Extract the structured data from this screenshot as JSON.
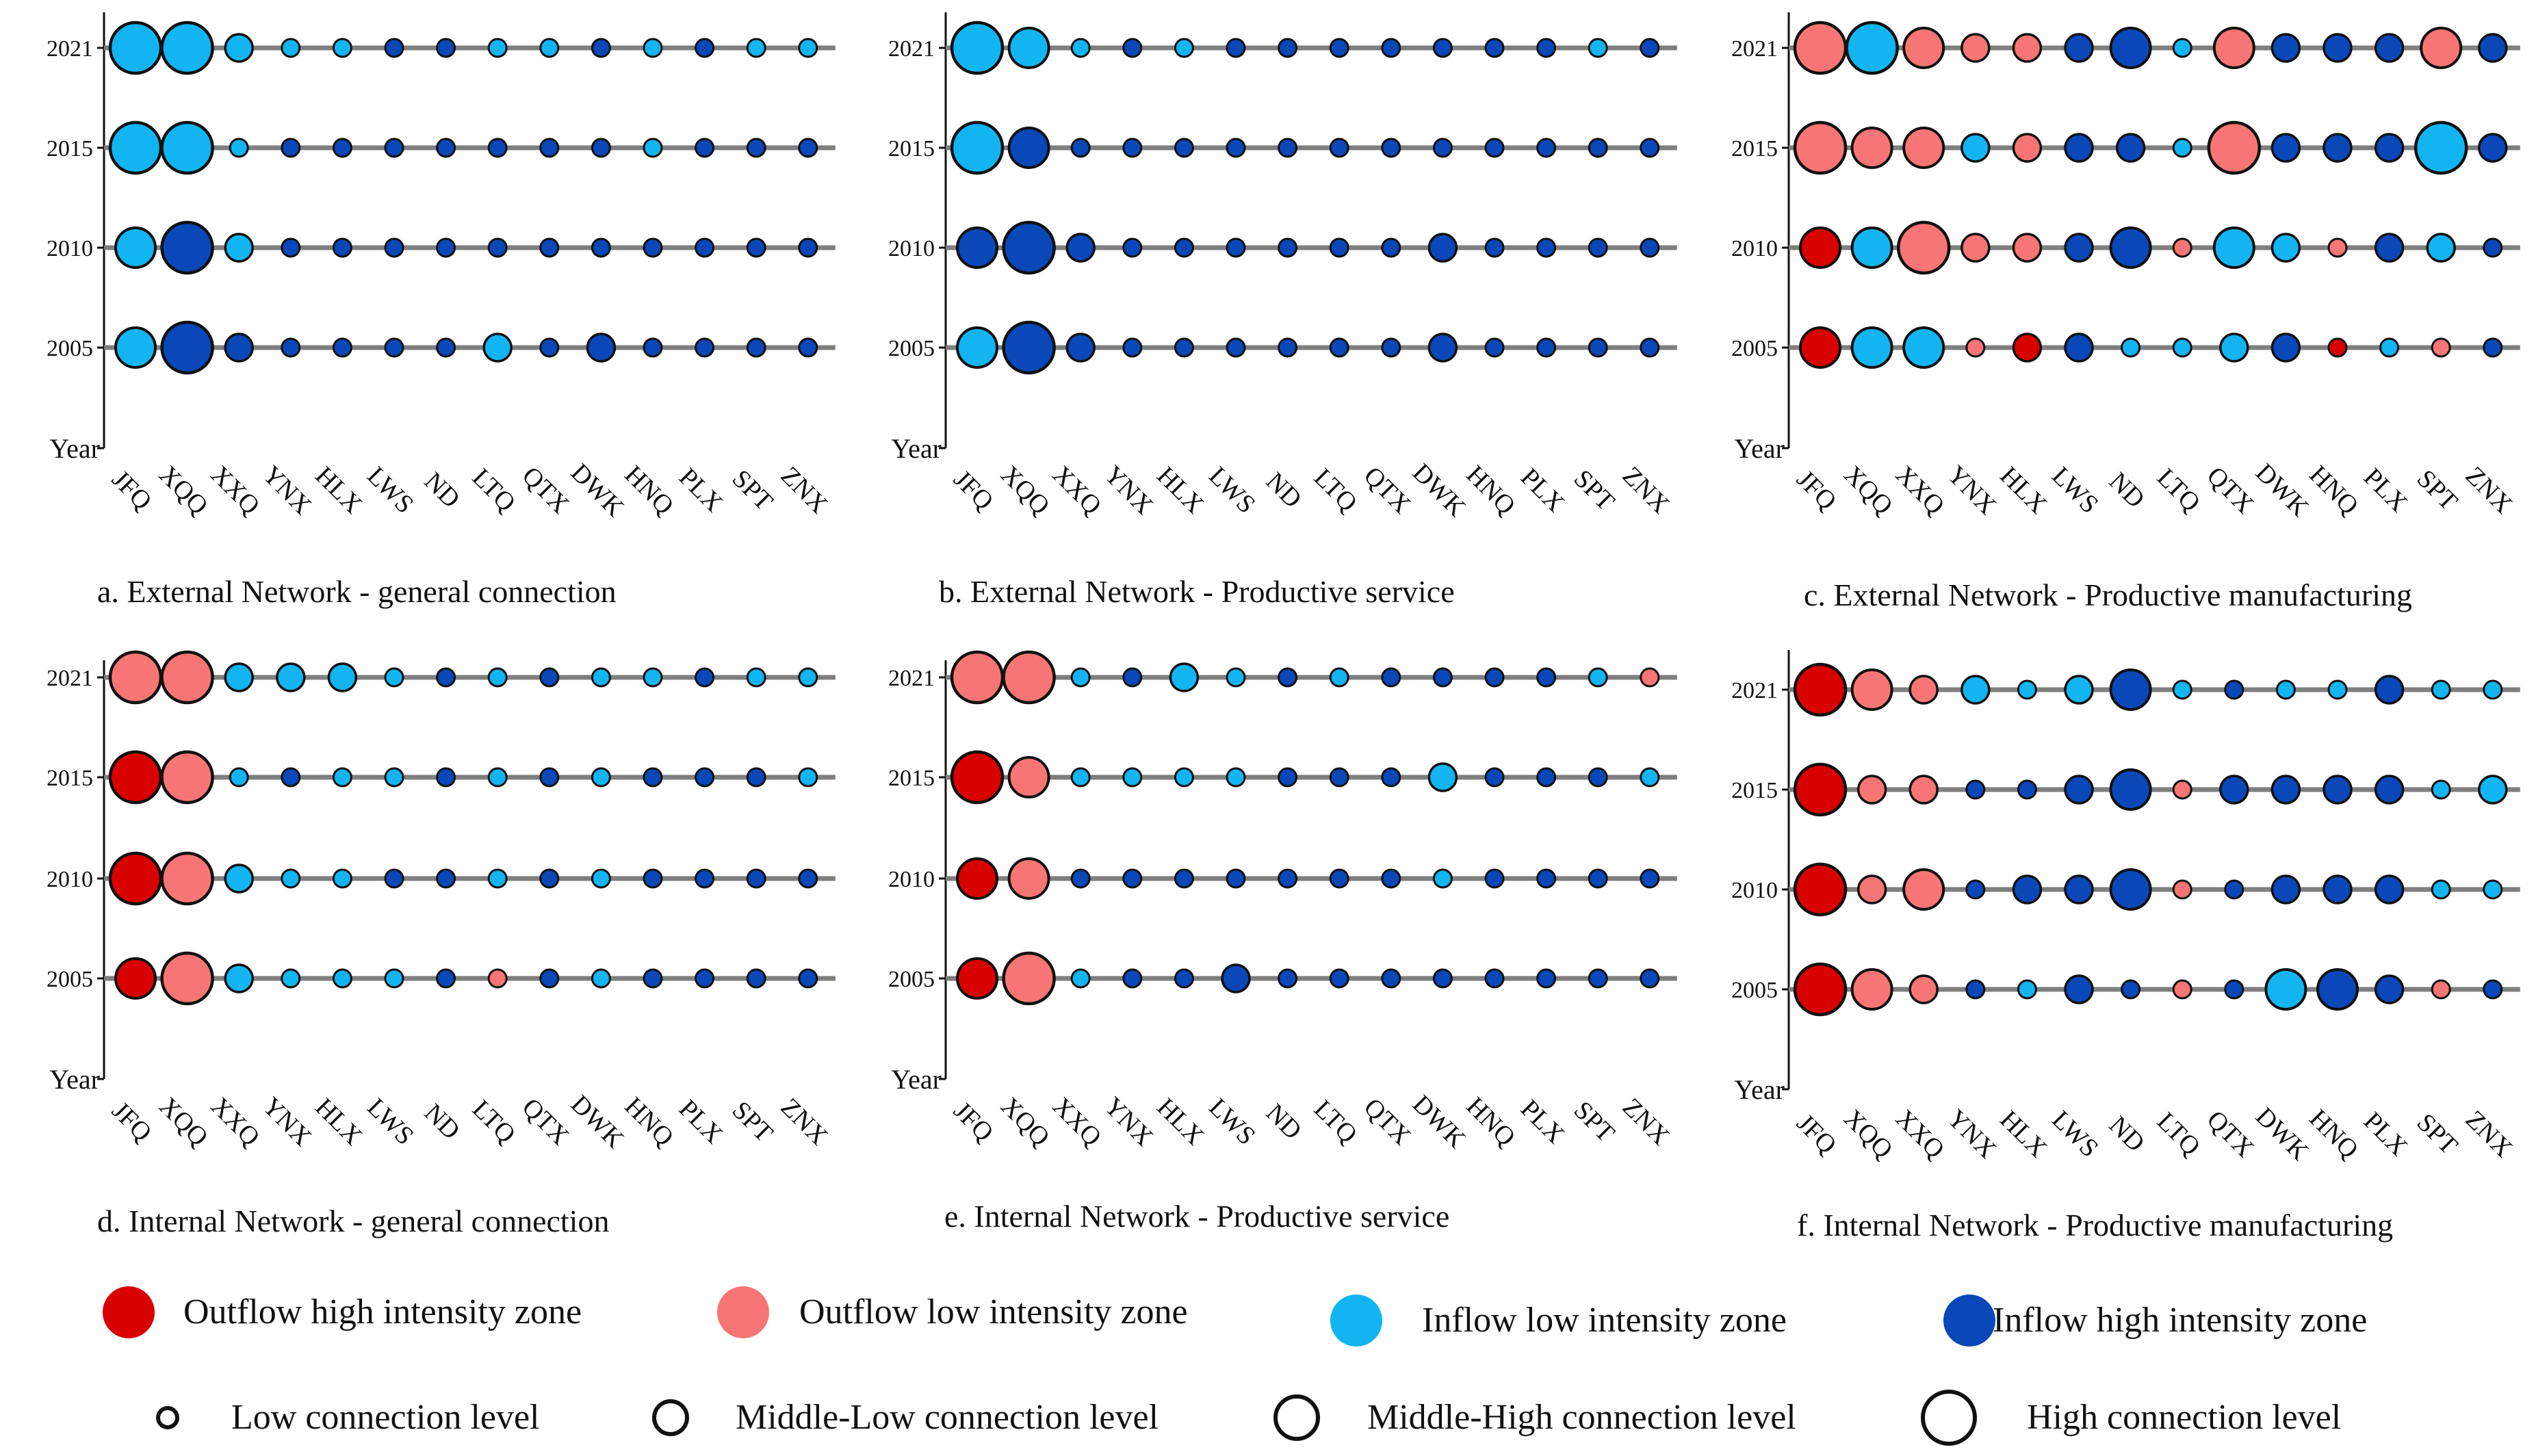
{
  "colors": {
    "outflow_high": "#d90000",
    "outflow_low": "#f87575",
    "inflow_low": "#12b5f2",
    "inflow_high": "#0a47b8",
    "line": "#7f7f7f",
    "marker_edge": "#111111"
  },
  "size_scale": {
    "level_1": 1,
    "level_2": 2,
    "level_3": 3,
    "level_4": 4
  },
  "chart_data": [
    {
      "type": "scatter",
      "title": "a.  External Network - general connection",
      "ylabel": "Year",
      "years": [
        "2005",
        "2010",
        "2015",
        "2021"
      ],
      "categories": [
        "JFQ",
        "XQQ",
        "XXQ",
        "YNX",
        "HLX",
        "LWS",
        "ND",
        "LTQ",
        "QTX",
        "DWK",
        "HNQ",
        "PLX",
        "SPT",
        "ZNX"
      ],
      "zones": [
        [
          "inflow_low",
          "inflow_high",
          "inflow_high",
          "inflow_high",
          "inflow_high",
          "inflow_high",
          "inflow_high",
          "inflow_low",
          "inflow_high",
          "inflow_high",
          "inflow_high",
          "inflow_high",
          "inflow_high",
          "inflow_high"
        ],
        [
          "inflow_low",
          "inflow_high",
          "inflow_low",
          "inflow_high",
          "inflow_high",
          "inflow_high",
          "inflow_high",
          "inflow_high",
          "inflow_high",
          "inflow_high",
          "inflow_high",
          "inflow_high",
          "inflow_high",
          "inflow_high"
        ],
        [
          "inflow_low",
          "inflow_low",
          "inflow_low",
          "inflow_high",
          "inflow_high",
          "inflow_high",
          "inflow_high",
          "inflow_high",
          "inflow_high",
          "inflow_high",
          "inflow_low",
          "inflow_high",
          "inflow_high",
          "inflow_high"
        ],
        [
          "inflow_low",
          "inflow_low",
          "inflow_low",
          "inflow_low",
          "inflow_low",
          "inflow_high",
          "inflow_high",
          "inflow_low",
          "inflow_low",
          "inflow_high",
          "inflow_low",
          "inflow_high",
          "inflow_low",
          "inflow_low"
        ]
      ],
      "levels": [
        [
          3,
          4,
          2,
          1,
          1,
          1,
          1,
          2,
          1,
          2,
          1,
          1,
          1,
          1
        ],
        [
          3,
          4,
          2,
          1,
          1,
          1,
          1,
          1,
          1,
          1,
          1,
          1,
          1,
          1
        ],
        [
          4,
          4,
          1,
          1,
          1,
          1,
          1,
          1,
          1,
          1,
          1,
          1,
          1,
          1
        ],
        [
          4,
          4,
          2,
          1,
          1,
          1,
          1,
          1,
          1,
          1,
          1,
          1,
          1,
          1
        ]
      ]
    },
    {
      "type": "scatter",
      "title": "b. External Network - Productive service",
      "ylabel": "Year",
      "years": [
        "2005",
        "2010",
        "2015",
        "2021"
      ],
      "categories": [
        "JFQ",
        "XQQ",
        "XXQ",
        "YNX",
        "HLX",
        "LWS",
        "ND",
        "LTQ",
        "QTX",
        "DWK",
        "HNQ",
        "PLX",
        "SPT",
        "ZNX"
      ],
      "zones": [
        [
          "inflow_low",
          "inflow_high",
          "inflow_high",
          "inflow_high",
          "inflow_high",
          "inflow_high",
          "inflow_high",
          "inflow_high",
          "inflow_high",
          "inflow_high",
          "inflow_high",
          "inflow_high",
          "inflow_high",
          "inflow_high"
        ],
        [
          "inflow_high",
          "inflow_high",
          "inflow_high",
          "inflow_high",
          "inflow_high",
          "inflow_high",
          "inflow_high",
          "inflow_high",
          "inflow_high",
          "inflow_high",
          "inflow_high",
          "inflow_high",
          "inflow_high",
          "inflow_high"
        ],
        [
          "inflow_low",
          "inflow_high",
          "inflow_high",
          "inflow_high",
          "inflow_high",
          "inflow_high",
          "inflow_high",
          "inflow_high",
          "inflow_high",
          "inflow_high",
          "inflow_high",
          "inflow_high",
          "inflow_high",
          "inflow_high"
        ],
        [
          "inflow_low",
          "inflow_low",
          "inflow_low",
          "inflow_high",
          "inflow_low",
          "inflow_high",
          "inflow_high",
          "inflow_high",
          "inflow_high",
          "inflow_high",
          "inflow_high",
          "inflow_high",
          "inflow_low",
          "inflow_high"
        ]
      ],
      "levels": [
        [
          3,
          4,
          2,
          1,
          1,
          1,
          1,
          1,
          1,
          2,
          1,
          1,
          1,
          1
        ],
        [
          3,
          4,
          2,
          1,
          1,
          1,
          1,
          1,
          1,
          2,
          1,
          1,
          1,
          1
        ],
        [
          4,
          3,
          1,
          1,
          1,
          1,
          1,
          1,
          1,
          1,
          1,
          1,
          1,
          1
        ],
        [
          4,
          3,
          1,
          1,
          1,
          1,
          1,
          1,
          1,
          1,
          1,
          1,
          1,
          1
        ]
      ]
    },
    {
      "type": "scatter",
      "title": "c. External Network - Productive manufacturing",
      "ylabel": "Year",
      "years": [
        "2005",
        "2010",
        "2015",
        "2021"
      ],
      "categories": [
        "JFQ",
        "XQQ",
        "XXQ",
        "YNX",
        "HLX",
        "LWS",
        "ND",
        "LTQ",
        "QTX",
        "DWK",
        "HNQ",
        "PLX",
        "SPT",
        "ZNX"
      ],
      "zones": [
        [
          "outflow_high",
          "inflow_low",
          "inflow_low",
          "outflow_low",
          "outflow_high",
          "inflow_high",
          "inflow_low",
          "inflow_low",
          "inflow_low",
          "inflow_high",
          "outflow_high",
          "inflow_low",
          "outflow_low",
          "inflow_high"
        ],
        [
          "outflow_high",
          "inflow_low",
          "outflow_low",
          "outflow_low",
          "outflow_low",
          "inflow_high",
          "inflow_high",
          "outflow_low",
          "inflow_low",
          "inflow_low",
          "outflow_low",
          "inflow_high",
          "inflow_low",
          "inflow_high"
        ],
        [
          "outflow_low",
          "outflow_low",
          "outflow_low",
          "inflow_low",
          "outflow_low",
          "inflow_high",
          "inflow_high",
          "inflow_low",
          "outflow_low",
          "inflow_high",
          "inflow_high",
          "inflow_high",
          "inflow_low",
          "inflow_high"
        ],
        [
          "outflow_low",
          "inflow_low",
          "outflow_low",
          "outflow_low",
          "outflow_low",
          "inflow_high",
          "inflow_high",
          "inflow_low",
          "outflow_low",
          "inflow_high",
          "inflow_high",
          "inflow_high",
          "outflow_low",
          "inflow_high"
        ]
      ],
      "levels": [
        [
          3,
          3,
          3,
          1,
          2,
          2,
          1,
          1,
          2,
          2,
          1,
          1,
          1,
          1
        ],
        [
          3,
          3,
          4,
          2,
          2,
          2,
          3,
          1,
          3,
          2,
          1,
          2,
          2,
          1
        ],
        [
          4,
          3,
          3,
          2,
          2,
          2,
          2,
          1,
          4,
          2,
          2,
          2,
          4,
          2
        ],
        [
          4,
          4,
          3,
          2,
          2,
          2,
          3,
          1,
          3,
          2,
          2,
          2,
          3,
          2
        ]
      ]
    },
    {
      "type": "scatter",
      "title": "d. Internal Network - general connection",
      "ylabel": "Year",
      "years": [
        "2005",
        "2010",
        "2015",
        "2021"
      ],
      "categories": [
        "JFQ",
        "XQQ",
        "XXQ",
        "YNX",
        "HLX",
        "LWS",
        "ND",
        "LTQ",
        "QTX",
        "DWK",
        "HNQ",
        "PLX",
        "SPT",
        "ZNX"
      ],
      "zones": [
        [
          "outflow_high",
          "outflow_low",
          "inflow_low",
          "inflow_low",
          "inflow_low",
          "inflow_low",
          "inflow_high",
          "outflow_low",
          "inflow_high",
          "inflow_low",
          "inflow_high",
          "inflow_high",
          "inflow_high",
          "inflow_high"
        ],
        [
          "outflow_high",
          "outflow_low",
          "inflow_low",
          "inflow_low",
          "inflow_low",
          "inflow_high",
          "inflow_high",
          "inflow_low",
          "inflow_high",
          "inflow_low",
          "inflow_high",
          "inflow_high",
          "inflow_high",
          "inflow_high"
        ],
        [
          "outflow_high",
          "outflow_low",
          "inflow_low",
          "inflow_high",
          "inflow_low",
          "inflow_low",
          "inflow_high",
          "inflow_low",
          "inflow_high",
          "inflow_low",
          "inflow_high",
          "inflow_high",
          "inflow_high",
          "inflow_low"
        ],
        [
          "outflow_low",
          "outflow_low",
          "inflow_low",
          "inflow_low",
          "inflow_low",
          "inflow_low",
          "inflow_high",
          "inflow_low",
          "inflow_high",
          "inflow_low",
          "inflow_low",
          "inflow_high",
          "inflow_low",
          "inflow_low"
        ]
      ],
      "levels": [
        [
          3,
          4,
          2,
          1,
          1,
          1,
          1,
          1,
          1,
          1,
          1,
          1,
          1,
          1
        ],
        [
          4,
          4,
          2,
          1,
          1,
          1,
          1,
          1,
          1,
          1,
          1,
          1,
          1,
          1
        ],
        [
          4,
          4,
          1,
          1,
          1,
          1,
          1,
          1,
          1,
          1,
          1,
          1,
          1,
          1
        ],
        [
          4,
          4,
          2,
          2,
          2,
          1,
          1,
          1,
          1,
          1,
          1,
          1,
          1,
          1
        ]
      ]
    },
    {
      "type": "scatter",
      "title": "e. Internal Network - Productive service",
      "ylabel": "Year",
      "years": [
        "2005",
        "2010",
        "2015",
        "2021"
      ],
      "categories": [
        "JFQ",
        "XQQ",
        "XXQ",
        "YNX",
        "HLX",
        "LWS",
        "ND",
        "LTQ",
        "QTX",
        "DWK",
        "HNQ",
        "PLX",
        "SPT",
        "ZNX"
      ],
      "zones": [
        [
          "outflow_high",
          "outflow_low",
          "inflow_low",
          "inflow_high",
          "inflow_high",
          "inflow_high",
          "inflow_high",
          "inflow_high",
          "inflow_high",
          "inflow_high",
          "inflow_high",
          "inflow_high",
          "inflow_high",
          "inflow_high"
        ],
        [
          "outflow_high",
          "outflow_low",
          "inflow_high",
          "inflow_high",
          "inflow_high",
          "inflow_high",
          "inflow_high",
          "inflow_high",
          "inflow_high",
          "inflow_low",
          "inflow_high",
          "inflow_high",
          "inflow_high",
          "inflow_high"
        ],
        [
          "outflow_high",
          "outflow_low",
          "inflow_low",
          "inflow_low",
          "inflow_low",
          "inflow_low",
          "inflow_high",
          "inflow_high",
          "inflow_high",
          "inflow_low",
          "inflow_high",
          "inflow_high",
          "inflow_high",
          "inflow_low"
        ],
        [
          "outflow_low",
          "outflow_low",
          "inflow_low",
          "inflow_high",
          "inflow_low",
          "inflow_low",
          "inflow_high",
          "inflow_low",
          "inflow_high",
          "inflow_high",
          "inflow_high",
          "inflow_high",
          "inflow_low",
          "outflow_low"
        ]
      ],
      "levels": [
        [
          3,
          4,
          1,
          1,
          1,
          2,
          1,
          1,
          1,
          1,
          1,
          1,
          1,
          1
        ],
        [
          3,
          3,
          1,
          1,
          1,
          1,
          1,
          1,
          1,
          1,
          1,
          1,
          1,
          1
        ],
        [
          4,
          3,
          1,
          1,
          1,
          1,
          1,
          1,
          1,
          2,
          1,
          1,
          1,
          1
        ],
        [
          4,
          4,
          1,
          1,
          2,
          1,
          1,
          1,
          1,
          1,
          1,
          1,
          1,
          1
        ]
      ]
    },
    {
      "type": "scatter",
      "title": "f. Internal Network - Productive manufacturing",
      "ylabel": "Year",
      "years": [
        "2005",
        "2010",
        "2015",
        "2021"
      ],
      "categories": [
        "JFQ",
        "XQQ",
        "XXQ",
        "YNX",
        "HLX",
        "LWS",
        "ND",
        "LTQ",
        "QTX",
        "DWK",
        "HNQ",
        "PLX",
        "SPT",
        "ZNX"
      ],
      "zones": [
        [
          "outflow_high",
          "outflow_low",
          "outflow_low",
          "inflow_high",
          "inflow_low",
          "inflow_high",
          "inflow_high",
          "outflow_low",
          "inflow_high",
          "inflow_low",
          "inflow_high",
          "inflow_high",
          "outflow_low",
          "inflow_high"
        ],
        [
          "outflow_high",
          "outflow_low",
          "outflow_low",
          "inflow_high",
          "inflow_high",
          "inflow_high",
          "inflow_high",
          "outflow_low",
          "inflow_high",
          "inflow_high",
          "inflow_high",
          "inflow_high",
          "inflow_low",
          "inflow_low"
        ],
        [
          "outflow_high",
          "outflow_low",
          "outflow_low",
          "inflow_high",
          "inflow_high",
          "inflow_high",
          "inflow_high",
          "outflow_low",
          "inflow_high",
          "inflow_high",
          "inflow_high",
          "inflow_high",
          "inflow_low",
          "inflow_low"
        ],
        [
          "outflow_high",
          "outflow_low",
          "outflow_low",
          "inflow_low",
          "inflow_low",
          "inflow_low",
          "inflow_high",
          "inflow_low",
          "inflow_high",
          "inflow_low",
          "inflow_low",
          "inflow_high",
          "inflow_low",
          "inflow_low"
        ]
      ],
      "levels": [
        [
          4,
          3,
          2,
          1,
          1,
          2,
          1,
          1,
          1,
          3,
          3,
          2,
          1,
          1
        ],
        [
          4,
          2,
          3,
          1,
          2,
          2,
          3,
          1,
          1,
          2,
          2,
          2,
          1,
          1
        ],
        [
          4,
          2,
          2,
          1,
          1,
          2,
          3,
          1,
          2,
          2,
          2,
          2,
          1,
          2
        ],
        [
          4,
          3,
          2,
          2,
          1,
          2,
          3,
          1,
          1,
          1,
          1,
          2,
          1,
          1
        ]
      ]
    }
  ],
  "legend": {
    "zones": [
      {
        "key": "outflow_high",
        "label": "Outflow high intensity zone"
      },
      {
        "key": "outflow_low",
        "label": "Outflow low intensity zone"
      },
      {
        "key": "inflow_low",
        "label": "Inflow low intensity zone"
      },
      {
        "key": "inflow_high",
        "label": "Inflow high intensity zone"
      }
    ],
    "levels": [
      {
        "level": 1,
        "label": "Low connection level"
      },
      {
        "level": 2,
        "label": "Middle-Low connection level"
      },
      {
        "level": 3,
        "label": "Middle-High connection level"
      },
      {
        "level": 4,
        "label": "High connection level"
      }
    ]
  }
}
